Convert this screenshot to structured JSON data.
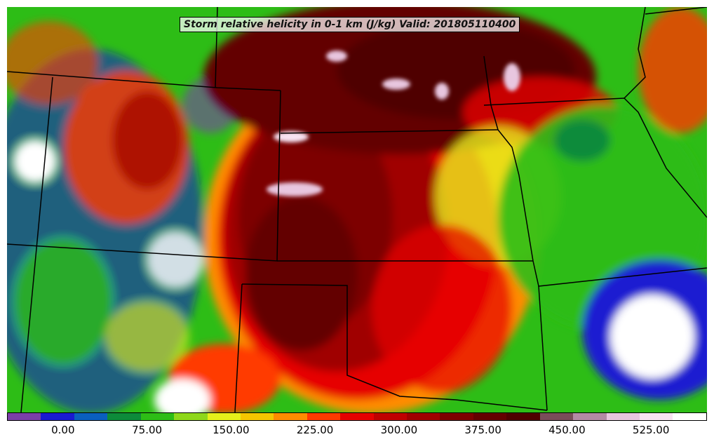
{
  "title": "Storm relative helicity in 0-1 km (J/kg) Valid: 201805110400",
  "colorbar": {
    "colors": [
      "#7b3fa8",
      "#1a1ad1",
      "#0a5fbf",
      "#0d8b3a",
      "#2dbd16",
      "#8ed81a",
      "#e6f01a",
      "#f5c600",
      "#ff8c00",
      "#ff3a00",
      "#e60000",
      "#c00000",
      "#a00000",
      "#7d0000",
      "#640000",
      "#4f0000",
      "#7a4d5a",
      "#b48aa5",
      "#e8c6df",
      "#f8e3f2",
      "#ffffff"
    ],
    "min": -50,
    "max": 575,
    "tick_labels": [
      "0.00",
      "75.00",
      "150.00",
      "225.00",
      "300.00",
      "375.00",
      "450.00",
      "525.00"
    ],
    "tick_values": [
      0,
      75,
      150,
      225,
      300,
      375,
      450,
      525
    ]
  }
}
